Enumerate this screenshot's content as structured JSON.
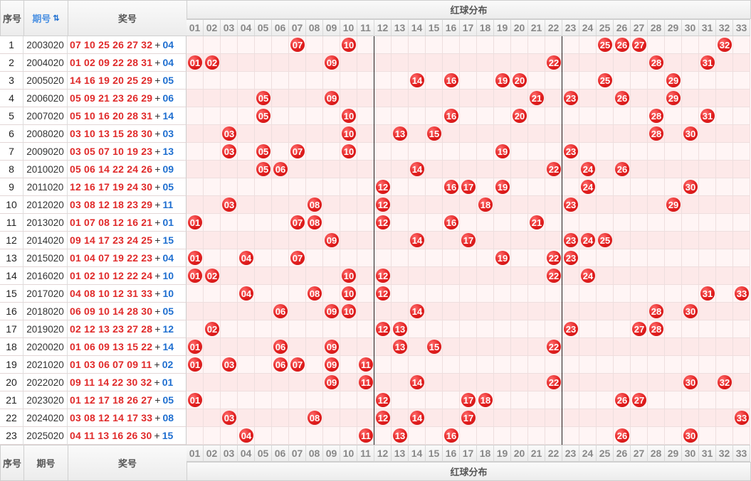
{
  "header": {
    "idx": "序号",
    "period": "期号",
    "sort_icon": "⇅",
    "draw": "奖号",
    "dist": "红球分布"
  },
  "footer": {
    "idx": "序号",
    "period": "期号",
    "draw": "奖号",
    "dist": "红球分布"
  },
  "numbers": [
    "01",
    "02",
    "03",
    "04",
    "05",
    "06",
    "07",
    "08",
    "09",
    "10",
    "11",
    "12",
    "13",
    "14",
    "15",
    "16",
    "17",
    "18",
    "19",
    "20",
    "21",
    "22",
    "23",
    "24",
    "25",
    "26",
    "27",
    "28",
    "29",
    "30",
    "31",
    "32",
    "33"
  ],
  "separator": "+",
  "rows": [
    {
      "idx": "1",
      "period": "2003020",
      "reds": "07 10 25 26 27 32",
      "blue": "04",
      "balls": [
        7,
        10,
        25,
        26,
        27,
        32
      ]
    },
    {
      "idx": "2",
      "period": "2004020",
      "reds": "01 02 09 22 28 31",
      "blue": "04",
      "balls": [
        1,
        2,
        9,
        22,
        28,
        31
      ]
    },
    {
      "idx": "3",
      "period": "2005020",
      "reds": "14 16 19 20 25 29",
      "blue": "05",
      "balls": [
        14,
        16,
        19,
        20,
        25,
        29
      ]
    },
    {
      "idx": "4",
      "period": "2006020",
      "reds": "05 09 21 23 26 29",
      "blue": "06",
      "balls": [
        5,
        9,
        21,
        23,
        26,
        29
      ]
    },
    {
      "idx": "5",
      "period": "2007020",
      "reds": "05 10 16 20 28 31",
      "blue": "14",
      "balls": [
        5,
        10,
        16,
        20,
        28,
        31
      ]
    },
    {
      "idx": "6",
      "period": "2008020",
      "reds": "03 10 13 15 28 30",
      "blue": "03",
      "balls": [
        3,
        10,
        13,
        15,
        28,
        30
      ]
    },
    {
      "idx": "7",
      "period": "2009020",
      "reds": "03 05 07 10 19 23",
      "blue": "13",
      "balls": [
        3,
        5,
        7,
        10,
        19,
        23
      ]
    },
    {
      "idx": "8",
      "period": "2010020",
      "reds": "05 06 14 22 24 26",
      "blue": "09",
      "balls": [
        5,
        6,
        14,
        22,
        24,
        26
      ]
    },
    {
      "idx": "9",
      "period": "2011020",
      "reds": "12 16 17 19 24 30",
      "blue": "05",
      "balls": [
        12,
        16,
        17,
        19,
        24,
        30
      ]
    },
    {
      "idx": "10",
      "period": "2012020",
      "reds": "03 08 12 18 23 29",
      "blue": "11",
      "balls": [
        3,
        8,
        12,
        18,
        23,
        29
      ]
    },
    {
      "idx": "11",
      "period": "2013020",
      "reds": "01 07 08 12 16 21",
      "blue": "01",
      "balls": [
        1,
        7,
        8,
        12,
        16,
        21
      ]
    },
    {
      "idx": "12",
      "period": "2014020",
      "reds": "09 14 17 23 24 25",
      "blue": "15",
      "balls": [
        9,
        14,
        17,
        23,
        24,
        25
      ]
    },
    {
      "idx": "13",
      "period": "2015020",
      "reds": "01 04 07 19 22 23",
      "blue": "04",
      "balls": [
        1,
        4,
        7,
        19,
        22,
        23
      ]
    },
    {
      "idx": "14",
      "period": "2016020",
      "reds": "01 02 10 12 22 24",
      "blue": "10",
      "balls": [
        1,
        2,
        10,
        12,
        22,
        24
      ]
    },
    {
      "idx": "15",
      "period": "2017020",
      "reds": "04 08 10 12 31 33",
      "blue": "10",
      "balls": [
        4,
        8,
        10,
        12,
        31,
        33
      ]
    },
    {
      "idx": "16",
      "period": "2018020",
      "reds": "06 09 10 14 28 30",
      "blue": "05",
      "balls": [
        6,
        9,
        10,
        14,
        28,
        30
      ]
    },
    {
      "idx": "17",
      "period": "2019020",
      "reds": "02 12 13 23 27 28",
      "blue": "12",
      "balls": [
        2,
        12,
        13,
        23,
        27,
        28
      ]
    },
    {
      "idx": "18",
      "period": "2020020",
      "reds": "01 06 09 13 15 22",
      "blue": "14",
      "balls": [
        1,
        6,
        9,
        13,
        15,
        22
      ]
    },
    {
      "idx": "19",
      "period": "2021020",
      "reds": "01 03 06 07 09 11",
      "blue": "02",
      "balls": [
        1,
        3,
        6,
        7,
        9,
        11
      ]
    },
    {
      "idx": "20",
      "period": "2022020",
      "reds": "09 11 14 22 30 32",
      "blue": "01",
      "balls": [
        9,
        11,
        14,
        22,
        30,
        32
      ]
    },
    {
      "idx": "21",
      "period": "2023020",
      "reds": "01 12 17 18 26 27",
      "blue": "05",
      "balls": [
        1,
        12,
        17,
        18,
        26,
        27
      ]
    },
    {
      "idx": "22",
      "period": "2024020",
      "reds": "03 08 12 14 17 33",
      "blue": "08",
      "balls": [
        3,
        8,
        12,
        14,
        17,
        33
      ]
    },
    {
      "idx": "23",
      "period": "2025020",
      "reds": "04 11 13 16 26 30",
      "blue": "15",
      "balls": [
        4,
        11,
        13,
        16,
        26,
        30
      ]
    }
  ],
  "colors": {
    "red_ball": "#e21f1f",
    "red_text": "#e02a2a",
    "blue_text": "#1f6fd0",
    "row_alt": "#fde9e9",
    "row_base": "#fff5f5"
  }
}
